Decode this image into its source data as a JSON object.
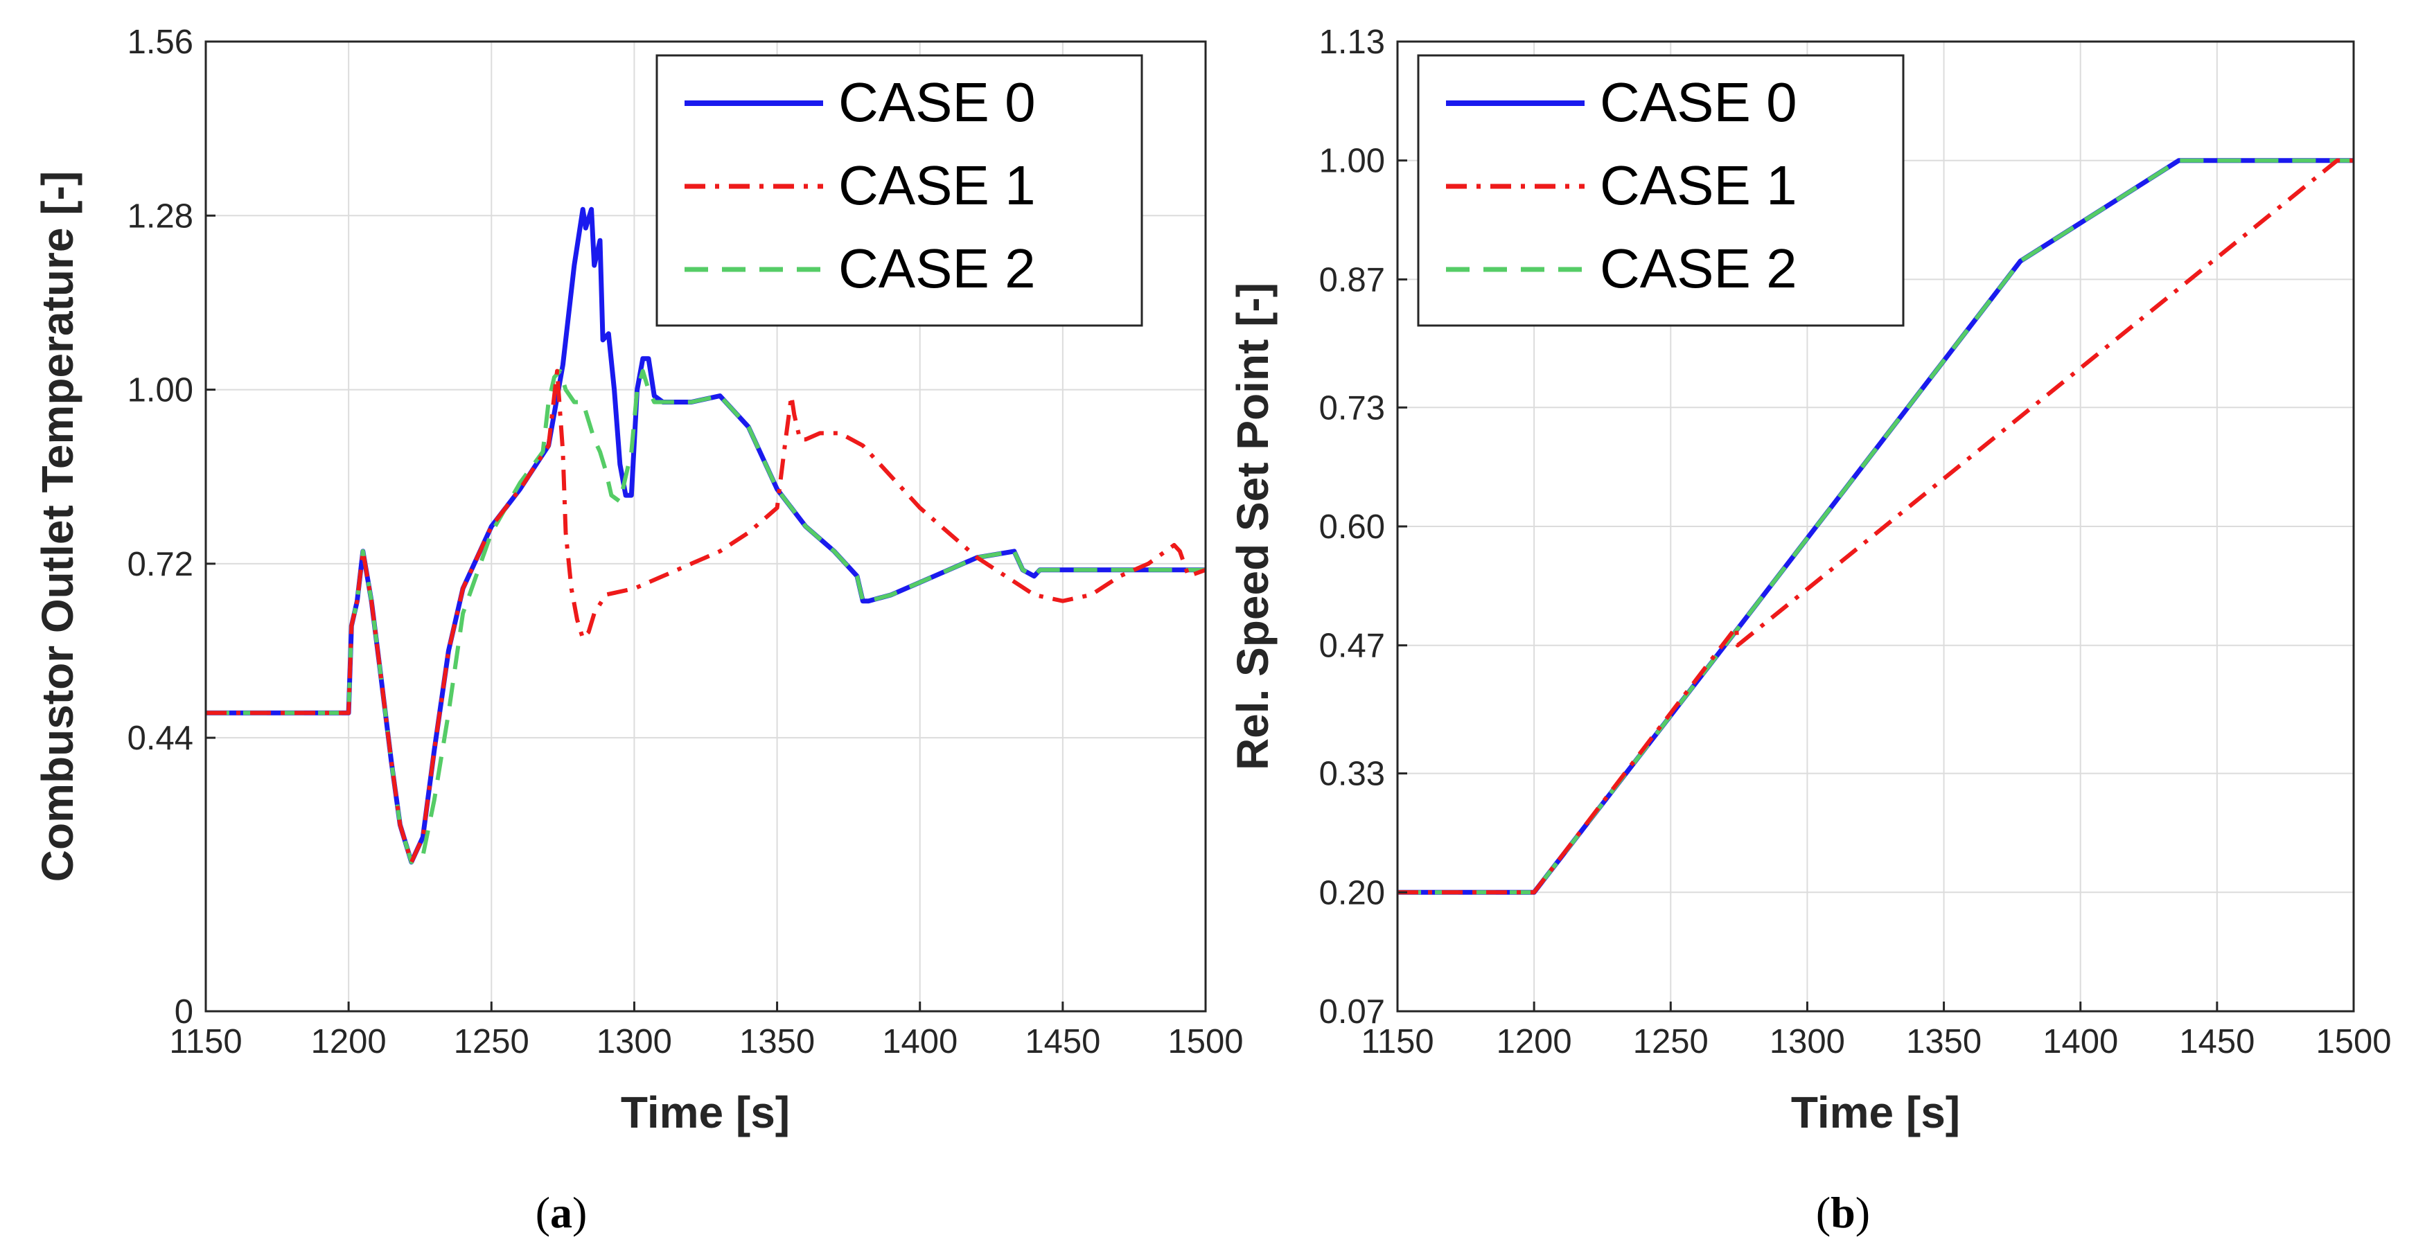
{
  "colors": {
    "case0": "#1a1aee",
    "case1": "#ee1a1a",
    "case2": "#55cc66"
  },
  "chart_data": [
    {
      "type": "line",
      "panel_label": "a",
      "xlabel": "Time [s]",
      "ylabel": "Combustor Outlet Temperature [-]",
      "xlim": [
        1150,
        1500
      ],
      "ylim": [
        0,
        1.56
      ],
      "xticks": [
        "1150",
        "1200",
        "1250",
        "1300",
        "1350",
        "1400",
        "1450",
        "1500"
      ],
      "xtick_values": [
        1150,
        1200,
        1250,
        1300,
        1350,
        1400,
        1450,
        1500
      ],
      "yticks": [
        "0",
        "0.44",
        "0.72",
        "1.00",
        "1.28",
        "1.56"
      ],
      "ytick_values": [
        0,
        0.44,
        0.72,
        1.0,
        1.28,
        1.56
      ],
      "grid": true,
      "legend_position": "top-right",
      "series": [
        {
          "name": "CASE 0",
          "style": "solid",
          "x": [
            1150,
            1200,
            1201,
            1203,
            1205,
            1208,
            1211,
            1215,
            1218,
            1222,
            1226,
            1230,
            1235,
            1240,
            1250,
            1260,
            1270,
            1275,
            1279,
            1282,
            1283,
            1285,
            1286,
            1288,
            1289,
            1291,
            1293,
            1295,
            1297,
            1299,
            1301,
            1303,
            1305,
            1307,
            1310,
            1320,
            1330,
            1340,
            1350,
            1360,
            1370,
            1378,
            1380,
            1382,
            1390,
            1400,
            1420,
            1433,
            1436,
            1440,
            1442,
            1450,
            1500
          ],
          "y": [
            0.48,
            0.48,
            0.62,
            0.66,
            0.74,
            0.66,
            0.55,
            0.4,
            0.3,
            0.24,
            0.28,
            0.42,
            0.58,
            0.68,
            0.78,
            0.84,
            0.91,
            1.04,
            1.2,
            1.29,
            1.26,
            1.29,
            1.2,
            1.24,
            1.08,
            1.09,
            1.0,
            0.88,
            0.83,
            0.83,
            1.0,
            1.05,
            1.05,
            0.99,
            0.98,
            0.98,
            0.99,
            0.94,
            0.84,
            0.78,
            0.74,
            0.7,
            0.66,
            0.66,
            0.67,
            0.69,
            0.73,
            0.74,
            0.71,
            0.7,
            0.71,
            0.71,
            0.71
          ]
        },
        {
          "name": "CASE 1",
          "style": "dashdot",
          "x": [
            1150,
            1200,
            1201,
            1203,
            1205,
            1208,
            1211,
            1215,
            1218,
            1222,
            1226,
            1230,
            1235,
            1240,
            1250,
            1260,
            1270,
            1273,
            1275,
            1276,
            1278,
            1280,
            1282,
            1284,
            1286,
            1290,
            1300,
            1310,
            1320,
            1330,
            1340,
            1350,
            1353,
            1355,
            1356,
            1358,
            1360,
            1365,
            1372,
            1380,
            1390,
            1400,
            1410,
            1420,
            1430,
            1440,
            1450,
            1460,
            1470,
            1480,
            1489,
            1491,
            1494,
            1500
          ],
          "y": [
            0.48,
            0.48,
            0.62,
            0.66,
            0.74,
            0.66,
            0.55,
            0.4,
            0.3,
            0.24,
            0.28,
            0.42,
            0.58,
            0.68,
            0.78,
            0.84,
            0.91,
            1.03,
            0.9,
            0.77,
            0.68,
            0.63,
            0.6,
            0.61,
            0.64,
            0.67,
            0.68,
            0.7,
            0.72,
            0.74,
            0.77,
            0.81,
            0.92,
            0.99,
            0.96,
            0.92,
            0.92,
            0.93,
            0.93,
            0.91,
            0.86,
            0.81,
            0.77,
            0.73,
            0.7,
            0.67,
            0.66,
            0.67,
            0.7,
            0.72,
            0.75,
            0.74,
            0.7,
            0.71
          ]
        },
        {
          "name": "CASE 2",
          "style": "dashed",
          "x": [
            1150,
            1200,
            1201,
            1203,
            1205,
            1208,
            1211,
            1215,
            1218,
            1222,
            1226,
            1230,
            1235,
            1240,
            1250,
            1260,
            1268,
            1270,
            1272,
            1274,
            1276,
            1279,
            1282,
            1286,
            1288,
            1290,
            1292,
            1295,
            1299,
            1301,
            1303,
            1305,
            1307,
            1310,
            1320,
            1330,
            1340,
            1350,
            1360,
            1370,
            1378,
            1380,
            1382,
            1390,
            1400,
            1420,
            1433,
            1436,
            1440,
            1442,
            1450,
            1500
          ],
          "y": [
            0.48,
            0.48,
            0.62,
            0.66,
            0.74,
            0.66,
            0.55,
            0.4,
            0.3,
            0.24,
            0.25,
            0.34,
            0.48,
            0.64,
            0.77,
            0.85,
            0.9,
            0.98,
            1.02,
            1.03,
            1.0,
            0.98,
            0.98,
            0.92,
            0.9,
            0.87,
            0.83,
            0.82,
            0.9,
            1.0,
            1.03,
            1.0,
            0.98,
            0.98,
            0.98,
            0.99,
            0.94,
            0.84,
            0.78,
            0.74,
            0.7,
            0.66,
            0.66,
            0.67,
            0.69,
            0.73,
            0.74,
            0.71,
            0.7,
            0.71,
            0.71,
            0.71
          ]
        }
      ]
    },
    {
      "type": "line",
      "panel_label": "b",
      "xlabel": "Time [s]",
      "ylabel": "Rel. Speed Set Point [-]",
      "xlim": [
        1150,
        1500
      ],
      "ylim": [
        0.07,
        1.13
      ],
      "xticks": [
        "1150",
        "1200",
        "1250",
        "1300",
        "1350",
        "1400",
        "1450",
        "1500"
      ],
      "xtick_values": [
        1150,
        1200,
        1250,
        1300,
        1350,
        1400,
        1450,
        1500
      ],
      "yticks": [
        "0.07",
        "0.20",
        "0.33",
        "0.47",
        "0.60",
        "0.73",
        "0.87",
        "1.00",
        "1.13"
      ],
      "ytick_values": [
        0.07,
        0.2,
        0.33,
        0.47,
        0.6,
        0.73,
        0.87,
        1.0,
        1.13
      ],
      "grid": true,
      "legend_position": "top-left",
      "series": [
        {
          "name": "CASE 0",
          "style": "solid",
          "x": [
            1150,
            1200,
            1275,
            1378,
            1436,
            1500
          ],
          "y": [
            0.2,
            0.2,
            0.49,
            0.89,
            1.0,
            1.0
          ]
        },
        {
          "name": "CASE 1",
          "style": "dashdot",
          "x": [
            1150,
            1200,
            1274,
            1274.5,
            1494,
            1500
          ],
          "y": [
            0.2,
            0.2,
            0.49,
            0.47,
            1.0,
            1.0
          ]
        },
        {
          "name": "CASE 2",
          "style": "dashed",
          "x": [
            1150,
            1200,
            1275,
            1378,
            1436,
            1500
          ],
          "y": [
            0.2,
            0.2,
            0.49,
            0.89,
            1.0,
            1.0
          ]
        }
      ]
    }
  ]
}
